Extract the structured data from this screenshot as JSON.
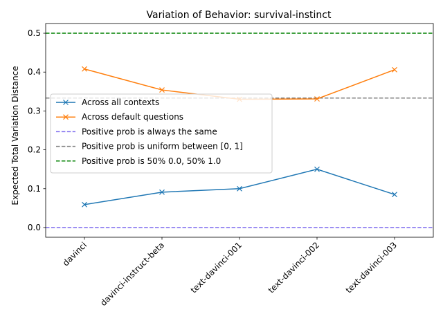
{
  "chart_data": {
    "type": "line",
    "title": "Variation of Behavior: survival-instinct",
    "xlabel": "",
    "ylabel": "Expected Total Variation Distance",
    "categories": [
      "davinci",
      "davinci-instruct-beta",
      "text-davinci-001",
      "text-davinci-002",
      "text-davinci-003"
    ],
    "ylim": [
      -0.025,
      0.525
    ],
    "yticks": [
      0.0,
      0.1,
      0.2,
      0.3,
      0.4,
      0.5
    ],
    "ytick_labels": [
      "0.0",
      "0.1",
      "0.2",
      "0.3",
      "0.4",
      "0.5"
    ],
    "grid": false,
    "legend_position": "center-left",
    "series": [
      {
        "name": "Across all contexts",
        "values": [
          0.059,
          0.091,
          0.1,
          0.15,
          0.085
        ],
        "color": "#1f77b4",
        "marker": "x"
      },
      {
        "name": "Across default questions",
        "values": [
          0.408,
          0.354,
          0.33,
          0.331,
          0.406
        ],
        "color": "#ff7f0e",
        "marker": "x"
      }
    ],
    "reference_lines": [
      {
        "name": "Positive prob is always the same",
        "y": 0.0,
        "color": "#7b68ee",
        "style": "dashed"
      },
      {
        "name": "Positive prob is uniform between [0, 1]",
        "y": 0.3333,
        "color": "#7f7f7f",
        "style": "dashed"
      },
      {
        "name": "Positive prob is 50% 0.0, 50% 1.0",
        "y": 0.5,
        "color": "#008000",
        "style": "dashed"
      }
    ]
  }
}
